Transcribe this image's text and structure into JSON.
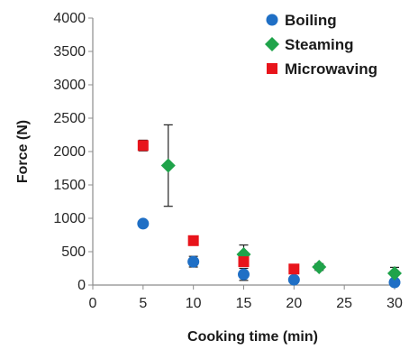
{
  "chart_data": {
    "type": "scatter",
    "xlabel": "Cooking time (min)",
    "ylabel": "Force (N)",
    "xlim": [
      0,
      30
    ],
    "ylim": [
      0,
      4000
    ],
    "x_ticks": [
      "0",
      "5",
      "10",
      "15",
      "20",
      "25",
      "30"
    ],
    "y_ticks": [
      "0",
      "500",
      "1000",
      "1500",
      "2000",
      "2500",
      "3000",
      "3500",
      "4000"
    ],
    "grid": false,
    "legend_position": "top-right",
    "series": [
      {
        "name": "Boiling",
        "marker": "circle",
        "color": "#1f6fc5",
        "points": [
          {
            "x": 5,
            "y": 920,
            "err": 20
          },
          {
            "x": 10,
            "y": 350,
            "err": 80
          },
          {
            "x": 15,
            "y": 160,
            "err": 90
          },
          {
            "x": 20,
            "y": 80,
            "err": 20
          },
          {
            "x": 30,
            "y": 40,
            "err": 20
          }
        ]
      },
      {
        "name": "Steaming",
        "marker": "diamond",
        "color": "#1fa34a",
        "points": [
          {
            "x": 7.5,
            "y": 1790,
            "err": 610
          },
          {
            "x": 15,
            "y": 460,
            "err": 140
          },
          {
            "x": 22.5,
            "y": 270,
            "err": 50
          },
          {
            "x": 30,
            "y": 175,
            "err": 90
          }
        ]
      },
      {
        "name": "Microwaving",
        "marker": "square",
        "color": "#e8141b",
        "points": [
          {
            "x": 5,
            "y": 2090,
            "err": 80
          },
          {
            "x": 10,
            "y": 665,
            "err": 20
          },
          {
            "x": 15,
            "y": 350,
            "err": 40
          },
          {
            "x": 20,
            "y": 240,
            "err": 20
          }
        ]
      }
    ]
  }
}
